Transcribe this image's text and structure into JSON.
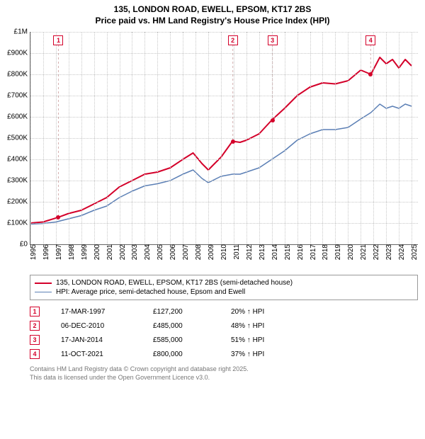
{
  "titles": {
    "line1": "135, LONDON ROAD, EWELL, EPSOM, KT17 2BS",
    "line2": "Price paid vs. HM Land Registry's House Price Index (HPI)"
  },
  "chart": {
    "type": "line",
    "background_color": "#ffffff",
    "grid_color": "#c8c8c8",
    "axis_color": "#666666",
    "tick_fontsize": 10,
    "x": {
      "min": 1995,
      "max": 2025.5,
      "ticks": [
        1995,
        1996,
        1997,
        1998,
        1999,
        2000,
        2001,
        2002,
        2003,
        2004,
        2005,
        2006,
        2007,
        2008,
        2009,
        2010,
        2011,
        2012,
        2013,
        2014,
        2015,
        2016,
        2017,
        2018,
        2019,
        2020,
        2021,
        2022,
        2023,
        2024,
        2025
      ]
    },
    "y": {
      "min": 0,
      "max": 1000000,
      "ticks": [
        0,
        100000,
        200000,
        300000,
        400000,
        500000,
        600000,
        700000,
        800000,
        900000,
        1000000
      ],
      "tick_labels": [
        "£0",
        "£100K",
        "£200K",
        "£300K",
        "£400K",
        "£500K",
        "£600K",
        "£700K",
        "£800K",
        "£900K",
        "£1M"
      ]
    },
    "series": {
      "price_paid": {
        "color": "#d4002a",
        "width": 2,
        "points": [
          [
            1995.0,
            100000
          ],
          [
            1996.0,
            105000
          ],
          [
            1997.2,
            127200
          ],
          [
            1998.0,
            145000
          ],
          [
            1999.0,
            160000
          ],
          [
            2000.0,
            190000
          ],
          [
            2001.0,
            220000
          ],
          [
            2002.0,
            270000
          ],
          [
            2003.0,
            300000
          ],
          [
            2004.0,
            330000
          ],
          [
            2005.0,
            340000
          ],
          [
            2006.0,
            360000
          ],
          [
            2007.0,
            400000
          ],
          [
            2007.8,
            430000
          ],
          [
            2008.5,
            380000
          ],
          [
            2009.0,
            350000
          ],
          [
            2009.5,
            380000
          ],
          [
            2010.0,
            410000
          ],
          [
            2010.9,
            485000
          ],
          [
            2011.5,
            480000
          ],
          [
            2012.0,
            490000
          ],
          [
            2013.0,
            520000
          ],
          [
            2014.0,
            585000
          ],
          [
            2015.0,
            640000
          ],
          [
            2016.0,
            700000
          ],
          [
            2017.0,
            740000
          ],
          [
            2018.0,
            760000
          ],
          [
            2019.0,
            755000
          ],
          [
            2020.0,
            770000
          ],
          [
            2021.0,
            820000
          ],
          [
            2021.8,
            800000
          ],
          [
            2022.5,
            880000
          ],
          [
            2023.0,
            850000
          ],
          [
            2023.5,
            870000
          ],
          [
            2024.0,
            830000
          ],
          [
            2024.5,
            870000
          ],
          [
            2025.0,
            840000
          ]
        ]
      },
      "hpi": {
        "color": "#5b7fb5",
        "width": 1.5,
        "points": [
          [
            1995.0,
            95000
          ],
          [
            1996.0,
            98000
          ],
          [
            1997.0,
            105000
          ],
          [
            1998.0,
            120000
          ],
          [
            1999.0,
            135000
          ],
          [
            2000.0,
            160000
          ],
          [
            2001.0,
            180000
          ],
          [
            2002.0,
            220000
          ],
          [
            2003.0,
            250000
          ],
          [
            2004.0,
            275000
          ],
          [
            2005.0,
            285000
          ],
          [
            2006.0,
            300000
          ],
          [
            2007.0,
            330000
          ],
          [
            2007.8,
            350000
          ],
          [
            2008.5,
            310000
          ],
          [
            2009.0,
            290000
          ],
          [
            2010.0,
            320000
          ],
          [
            2010.9,
            330000
          ],
          [
            2011.5,
            330000
          ],
          [
            2012.0,
            340000
          ],
          [
            2013.0,
            360000
          ],
          [
            2014.0,
            400000
          ],
          [
            2015.0,
            440000
          ],
          [
            2016.0,
            490000
          ],
          [
            2017.0,
            520000
          ],
          [
            2018.0,
            540000
          ],
          [
            2019.0,
            540000
          ],
          [
            2020.0,
            550000
          ],
          [
            2021.0,
            590000
          ],
          [
            2021.8,
            620000
          ],
          [
            2022.5,
            660000
          ],
          [
            2023.0,
            640000
          ],
          [
            2023.5,
            650000
          ],
          [
            2024.0,
            640000
          ],
          [
            2024.5,
            660000
          ],
          [
            2025.0,
            650000
          ]
        ]
      }
    },
    "sale_markers": [
      {
        "n": "1",
        "year": 1997.2,
        "price": 127200,
        "marker_top_y": 960000
      },
      {
        "n": "2",
        "year": 2010.93,
        "price": 485000,
        "marker_top_y": 960000
      },
      {
        "n": "3",
        "year": 2014.05,
        "price": 585000,
        "marker_top_y": 960000
      },
      {
        "n": "4",
        "year": 2021.78,
        "price": 800000,
        "marker_top_y": 960000
      }
    ],
    "marker_color": "#d4002a",
    "marker_line_color": "#d4b0b0"
  },
  "legend": {
    "items": [
      {
        "color": "#d4002a",
        "width": 2,
        "label": "135, LONDON ROAD, EWELL, EPSOM, KT17 2BS (semi-detached house)"
      },
      {
        "color": "#5b7fb5",
        "width": 1.5,
        "label": "HPI: Average price, semi-detached house, Epsom and Ewell"
      }
    ]
  },
  "sales_table": {
    "marker_color": "#d4002a",
    "arrow": "↑",
    "hpi_suffix": "HPI",
    "rows": [
      {
        "n": "1",
        "date": "17-MAR-1997",
        "price": "£127,200",
        "delta": "20%"
      },
      {
        "n": "2",
        "date": "06-DEC-2010",
        "price": "£485,000",
        "delta": "48%"
      },
      {
        "n": "3",
        "date": "17-JAN-2014",
        "price": "£585,000",
        "delta": "51%"
      },
      {
        "n": "4",
        "date": "11-OCT-2021",
        "price": "£800,000",
        "delta": "37%"
      }
    ]
  },
  "footer": {
    "line1": "Contains HM Land Registry data © Crown copyright and database right 2025.",
    "line2": "This data is licensed under the Open Government Licence v3.0."
  }
}
